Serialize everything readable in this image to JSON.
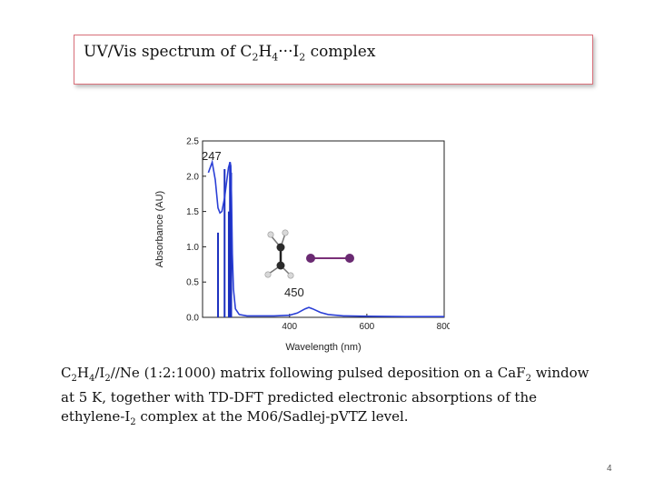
{
  "slide": {
    "title": {
      "prefix": "UV/Vis spectrum of C",
      "sub1": "2",
      "mid1": "H",
      "sub2": "4",
      "mid2": "···I",
      "sub3": "2",
      "suffix": " complex"
    },
    "caption": {
      "p1": "C",
      "s1": "2",
      "p2": "H",
      "s2": "4",
      "p3": "/I",
      "s3": "2",
      "p4": "//Ne (1:2:1000) matrix following pulsed deposition on a CaF",
      "s4": "2",
      "p5": " window at 5 K,  together  with TD-DFT predicted electronic absorptions of the ethylene-I",
      "s5": "2",
      "p6": " complex at the M06/Sadlej-pVTZ level."
    },
    "page_number": "4"
  },
  "chart_data": {
    "type": "line",
    "xlabel": "Wavelength (nm)",
    "ylabel": "Absorbance (AU)",
    "xlim": [
      175,
      800
    ],
    "ylim": [
      0,
      2.5
    ],
    "x_ticks": [
      "400",
      "600",
      "800"
    ],
    "y_ticks": [
      "0.0",
      "0.5",
      "1.0",
      "1.5",
      "2.0",
      "2.5"
    ],
    "grid": false,
    "annotations": [
      "247",
      "450"
    ],
    "series": [
      {
        "color": "#2a3fd6",
        "x": [
          190,
          200,
          208,
          215,
          220,
          225,
          232,
          238,
          242,
          246,
          248,
          250,
          252,
          255,
          260,
          270,
          290,
          320,
          360,
          400,
          420,
          440,
          450,
          460,
          480,
          500,
          540,
          600,
          700,
          800
        ],
        "y": [
          2.05,
          2.2,
          1.95,
          1.55,
          1.48,
          1.5,
          1.7,
          1.95,
          2.12,
          2.2,
          2.15,
          1.7,
          0.9,
          0.4,
          0.12,
          0.04,
          0.02,
          0.02,
          0.02,
          0.03,
          0.06,
          0.12,
          0.14,
          0.12,
          0.07,
          0.04,
          0.02,
          0.015,
          0.01,
          0.01
        ]
      }
    ],
    "sticks": {
      "color": "#1b2fbf",
      "x": [
        215,
        232,
        243,
        246,
        249
      ],
      "y": [
        1.2,
        2.1,
        1.5,
        2.2,
        2.05
      ]
    }
  }
}
